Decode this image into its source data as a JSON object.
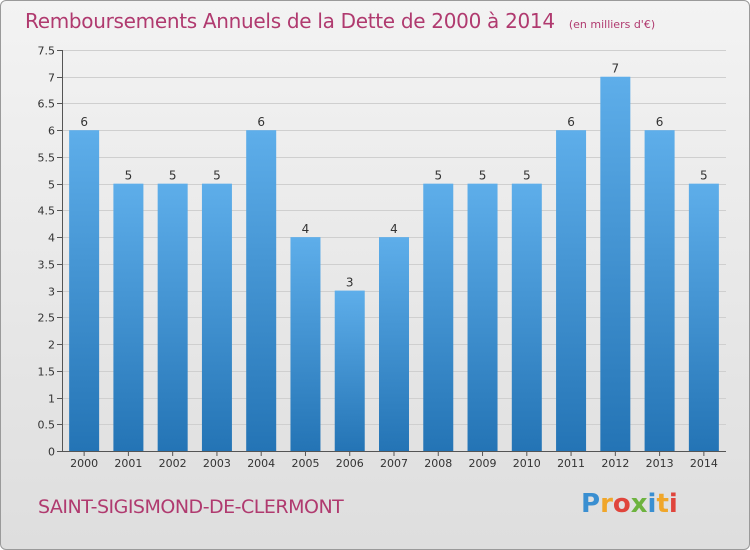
{
  "chart_data": {
    "type": "bar",
    "title": "Remboursements Annuels de la Dette de 2000 à 2014",
    "subtitle": "(en milliers d'€)",
    "categories": [
      "2000",
      "2001",
      "2002",
      "2003",
      "2004",
      "2005",
      "2006",
      "2007",
      "2008",
      "2009",
      "2010",
      "2011",
      "2012",
      "2013",
      "2014"
    ],
    "values": [
      6,
      5,
      5,
      5,
      6,
      4,
      3,
      4,
      5,
      5,
      5,
      6,
      7,
      6,
      5
    ],
    "data_labels": [
      "6",
      "5",
      "5",
      "5",
      "6",
      "4",
      "3",
      "4",
      "5",
      "5",
      "5",
      "6",
      "7",
      "6",
      "5"
    ],
    "ylim": [
      0,
      7.5
    ],
    "yticks": [
      0,
      0.5,
      1,
      1.5,
      2,
      2.5,
      3,
      3.5,
      4,
      4.5,
      5,
      5.5,
      6,
      6.5,
      7,
      7.5
    ],
    "ytick_labels": [
      "0",
      "0.5",
      "1",
      "1.5",
      "2",
      "2.5",
      "3",
      "3.5",
      "4",
      "4.5",
      "5",
      "5.5",
      "6",
      "6.5",
      "7",
      "7.5"
    ],
    "grid": true,
    "bar_color": "#3f93d6"
  },
  "footer": {
    "commune": "SAINT-SIGISMOND-DE-CLERMONT",
    "brand": "Proxiti"
  },
  "colors": {
    "title": "#b03a6f",
    "bar_top": "#5eaeea",
    "bar_bottom": "#2474b5"
  }
}
